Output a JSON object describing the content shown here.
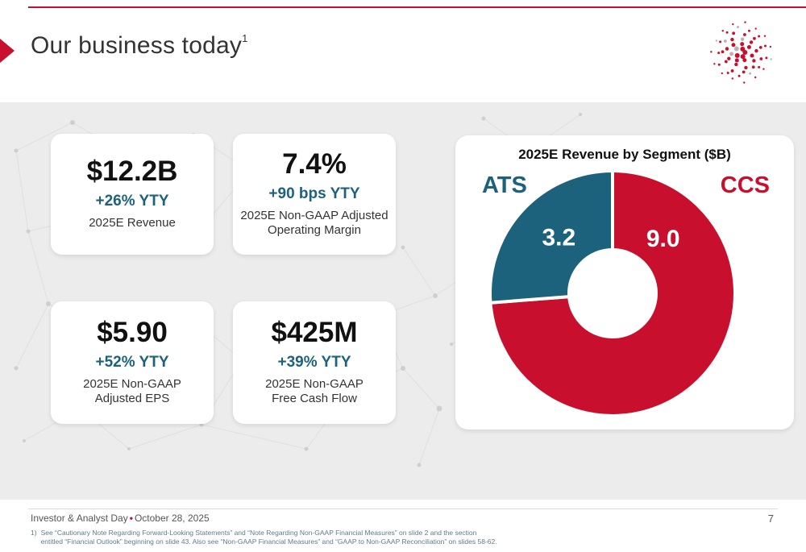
{
  "slide": {
    "title": "Our business today",
    "title_note_ref": "1",
    "page_number": "7",
    "footer": {
      "event": "Investor & Analyst Day",
      "separator": "•",
      "date": "October 28, 2025"
    },
    "footnote": {
      "marker": "1)",
      "text": "See “Cautionary Note Regarding Forward-Looking Statements” and “Note Regarding Non-GAAP Financial Measures” on slide 2 and the section\nentitled “Financial Outlook” beginning on slide 43. Also see “Non-GAAP Financial Measures” and “GAAP to Non-GAAP Reconciliation” on slides 58-62."
    }
  },
  "colors": {
    "accent_red": "#c8102e",
    "metric_teal": "#1d627c",
    "stage_gray": "#ececec"
  },
  "stats": [
    {
      "value": "$12.2B",
      "change": "+26% YTY",
      "label": "2025E Revenue"
    },
    {
      "value": "7.4%",
      "change": "+90 bps YTY",
      "label": "2025E Non-GAAP Adjusted\nOperating Margin"
    },
    {
      "value": "$5.90",
      "change": "+52% YTY",
      "label": "2025E Non-GAAP\nAdjusted EPS"
    },
    {
      "value": "$425M",
      "change": "+39% YTY",
      "label": "2025E Non-GAAP\nFree Cash Flow"
    }
  ],
  "chart_data": {
    "type": "pie",
    "subtype": "donut",
    "title": "2025E Revenue by Segment ($B)",
    "units": "$B",
    "total": 12.2,
    "start_angle_deg": -90,
    "layout_hint": "CCS drawn clockwise from top (right side), ATS counterclockwise (left side), white gaps between segments, values shown inside rings",
    "segments": [
      {
        "name": "ATS",
        "value": 3.2,
        "color": "#1d627c"
      },
      {
        "name": "CCS",
        "value": 9.0,
        "color": "#c8102e"
      }
    ]
  }
}
